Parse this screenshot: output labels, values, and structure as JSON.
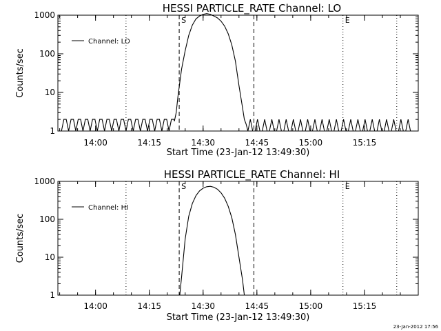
{
  "footer_stamp": "23-Jan-2012 17:56",
  "chart_data": [
    {
      "type": "line",
      "title": "HESSI PARTICLE_RATE Channel: LO",
      "xlabel": "Start Time (23-Jan-12 13:49:30)",
      "ylabel": "Counts/sec",
      "y_scale": "log",
      "ylim": [
        1,
        1000
      ],
      "xlim": [
        "13:49:30",
        "15:30:00"
      ],
      "x_ticks": [
        "14:00",
        "14:15",
        "14:30",
        "14:45",
        "15:00",
        "15:15"
      ],
      "y_ticks": [
        "1",
        "10",
        "100",
        "1000"
      ],
      "legend": "top-left",
      "series": [
        {
          "name": "Channel: LO",
          "x": [
            "14:22:00",
            "14:22:30",
            "14:23:00",
            "14:24:00",
            "14:25:00",
            "14:26:00",
            "14:27:00",
            "14:28:00",
            "14:29:00",
            "14:30:00",
            "14:31:00",
            "14:32:00",
            "14:33:00",
            "14:34:00",
            "14:35:00",
            "14:36:00",
            "14:37:00",
            "14:38:00",
            "14:39:00",
            "14:40:00",
            "14:41:00",
            "14:41:30",
            "14:42:00"
          ],
          "values": [
            1.8,
            3,
            8,
            40,
            120,
            300,
            550,
            800,
            950,
            1050,
            1100,
            1050,
            950,
            850,
            700,
            520,
            330,
            170,
            65,
            15,
            4,
            2,
            1.5
          ],
          "baseline_noise": "counts fluctuating between 1 and 2 outside the event"
        }
      ],
      "markers": [
        {
          "label": "S",
          "time": "14:23:20",
          "style": "dashed"
        },
        {
          "label": "",
          "time": "14:44:10",
          "style": "dashed"
        },
        {
          "label": "E",
          "time": "15:09:00",
          "style": "dotted"
        },
        {
          "label": "",
          "time": "14:08:30",
          "style": "dotted"
        },
        {
          "label": "",
          "time": "15:24:00",
          "style": "dotted"
        }
      ]
    },
    {
      "type": "line",
      "title": "HESSI PARTICLE_RATE Channel: HI",
      "xlabel": "Start Time (23-Jan-12 13:49:30)",
      "ylabel": "Counts/sec",
      "y_scale": "log",
      "ylim": [
        1,
        1000
      ],
      "xlim": [
        "13:49:30",
        "15:30:00"
      ],
      "x_ticks": [
        "14:00",
        "14:15",
        "14:30",
        "14:45",
        "15:00",
        "15:15"
      ],
      "y_ticks": [
        "1",
        "10",
        "100",
        "1000"
      ],
      "legend": "top-left",
      "series": [
        {
          "name": "Channel: HI",
          "x": [
            "14:23:30",
            "14:24:00",
            "14:25:00",
            "14:26:00",
            "14:27:00",
            "14:28:00",
            "14:29:00",
            "14:30:00",
            "14:31:00",
            "14:32:00",
            "14:33:00",
            "14:34:00",
            "14:35:00",
            "14:36:00",
            "14:37:00",
            "14:38:00",
            "14:39:00",
            "14:40:00",
            "14:41:00",
            "14:41:30"
          ],
          "values": [
            1,
            3,
            30,
            120,
            260,
            420,
            560,
            660,
            720,
            740,
            700,
            620,
            500,
            360,
            220,
            110,
            40,
            10,
            2.5,
            1
          ],
          "baseline_noise": "no counts above 1 outside the event"
        }
      ],
      "markers": [
        {
          "label": "S",
          "time": "14:23:20",
          "style": "dashed"
        },
        {
          "label": "",
          "time": "14:44:10",
          "style": "dashed"
        },
        {
          "label": "E",
          "time": "15:09:00",
          "style": "dotted"
        },
        {
          "label": "",
          "time": "14:08:30",
          "style": "dotted"
        },
        {
          "label": "",
          "time": "15:24:00",
          "style": "dotted"
        }
      ]
    }
  ]
}
